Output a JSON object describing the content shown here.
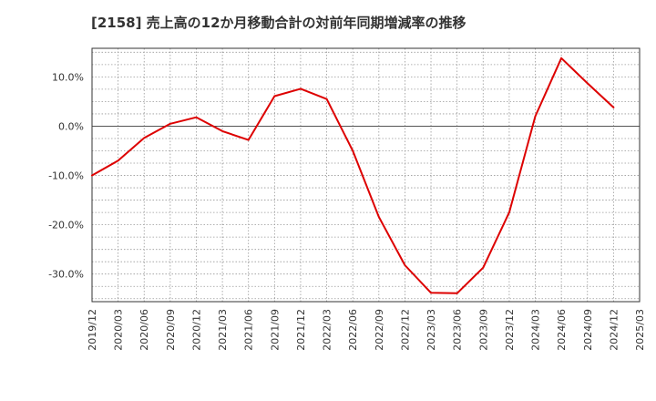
{
  "chart_data": {
    "type": "line",
    "title": "[2158]  売上高の12か月移動合計の対前年同期増減率の推移",
    "xlabel": "",
    "ylabel": "",
    "x": [
      "2019/12",
      "2020/03",
      "2020/06",
      "2020/09",
      "2020/12",
      "2021/03",
      "2021/06",
      "2021/09",
      "2021/12",
      "2022/03",
      "2022/06",
      "2022/09",
      "2022/12",
      "2023/03",
      "2023/06",
      "2023/09",
      "2023/12",
      "2024/03",
      "2024/06",
      "2024/09",
      "2024/12",
      "2025/03"
    ],
    "series": [
      {
        "color": "#dd0000",
        "values": [
          -10.0,
          -7.0,
          -2.4,
          0.5,
          1.8,
          -1.0,
          -2.8,
          6.1,
          7.6,
          5.5,
          -5.0,
          -18.4,
          -28.2,
          -33.8,
          -33.9,
          -28.7,
          -17.5,
          2.0,
          13.8,
          8.7,
          3.8,
          null
        ]
      }
    ],
    "y_ticks": [
      10,
      0,
      -10,
      -20,
      -30
    ],
    "y_tick_labels": [
      "10.0%",
      "0.0%",
      "-10.0%",
      "-20.0%",
      "-30.0%"
    ],
    "ylim": [
      -35.6,
      15.8
    ],
    "grid": true,
    "legend": "none"
  }
}
